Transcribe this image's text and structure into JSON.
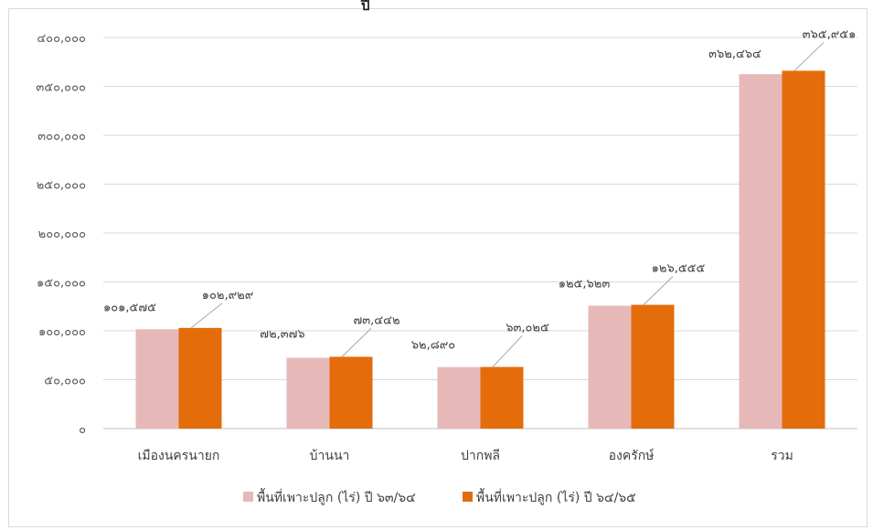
{
  "chart_data": {
    "type": "bar",
    "title": "ปี",
    "categories": [
      "เมืองนครนายก",
      "บ้านนา",
      "ปากพลี",
      "องครักษ์",
      "รวม"
    ],
    "series": [
      {
        "name": "พื้นที่เพาะปลูก (ไร่) ปี ๖๓/๖๔",
        "color": "#e6b9b8",
        "values": [
          101575,
          72376,
          62890,
          125623,
          362464
        ],
        "labels": [
          "๑๐๑,๕๗๕",
          "๗๒,๓๗๖",
          "๖๒,๘๙๐",
          "๑๒๕,๖๒๓",
          "๓๖๒,๔๖๔"
        ]
      },
      {
        "name": "พื้นที่เพาะปลูก (ไร่) ปี ๖๔/๖๕",
        "color": "#e46c0a",
        "values": [
          102929,
          73442,
          63025,
          126555,
          365951
        ],
        "labels": [
          "๑๐๒,๙๒๙",
          "๗๓,๔๔๒",
          "๖๓,๐๒๕",
          "๑๒๖,๕๕๕",
          "๓๖๕,๙๕๑"
        ]
      }
    ],
    "ylim": [
      0,
      400000
    ],
    "yticks": [
      0,
      50000,
      100000,
      150000,
      200000,
      250000,
      300000,
      350000,
      400000
    ],
    "ytick_labels": [
      "๐",
      "๕๐,๐๐๐",
      "๑๐๐,๐๐๐",
      "๑๕๐,๐๐๐",
      "๒๐๐,๐๐๐",
      "๒๕๐,๐๐๐",
      "๓๐๐,๐๐๐",
      "๓๕๐,๐๐๐",
      "๔๐๐,๐๐๐"
    ],
    "grid": true,
    "legend_position": "bottom",
    "xlabel": "",
    "ylabel": ""
  }
}
